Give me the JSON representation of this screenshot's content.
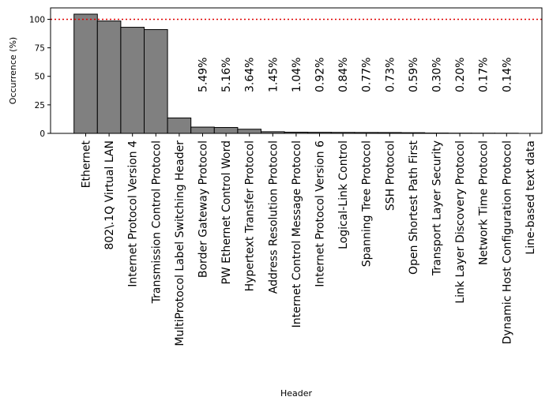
{
  "chart_data": {
    "type": "bar",
    "title": "",
    "xlabel": "Header",
    "ylabel": "Occurrence (%)",
    "ylim": [
      0,
      110
    ],
    "yticks": [
      0,
      25,
      50,
      75,
      100
    ],
    "grid": false,
    "legend": "none",
    "bar_color": "#808080",
    "bar_edge_color": "#000000",
    "reference_line": {
      "y": 100,
      "color": "#e00000",
      "style": "dotted"
    },
    "categories": [
      "Ethernet",
      "802\\.1Q Virtual LAN",
      "Internet Protocol Version 4",
      "Transmission Control Protocol",
      "MultiProtocol Label Switching Header",
      "Border Gateway Protocol",
      "PW Ethernet Control Word",
      "Hypertext Transfer Protocol",
      "Address Resolution Protocol",
      "Internet Control Message Protocol",
      "Internet Protocol Version 6",
      "Logical-Link Control",
      "Spanning Tree Protocol",
      "SSH Protocol",
      "Open Shortest Path First",
      "Transport Layer Security",
      "Link Layer Discovery Protocol",
      "Network Time Protocol",
      "Dynamic Host Configuration Protocol",
      "Line-based text data"
    ],
    "values": [
      104.5,
      98.5,
      93,
      91,
      13.5,
      5.49,
      5.16,
      3.64,
      1.45,
      1.04,
      0.92,
      0.84,
      0.77,
      0.73,
      0.59,
      0.3,
      0.2,
      0.17,
      0.14,
      0
    ],
    "data_labels": [
      "",
      "",
      "",
      "",
      "",
      "5.49%",
      "5.16%",
      "3.64%",
      "1.45%",
      "1.04%",
      "0.92%",
      "0.84%",
      "0.77%",
      "0.73%",
      "0.59%",
      "0.30%",
      "0.20%",
      "0.17%",
      "0.14%",
      ""
    ]
  }
}
